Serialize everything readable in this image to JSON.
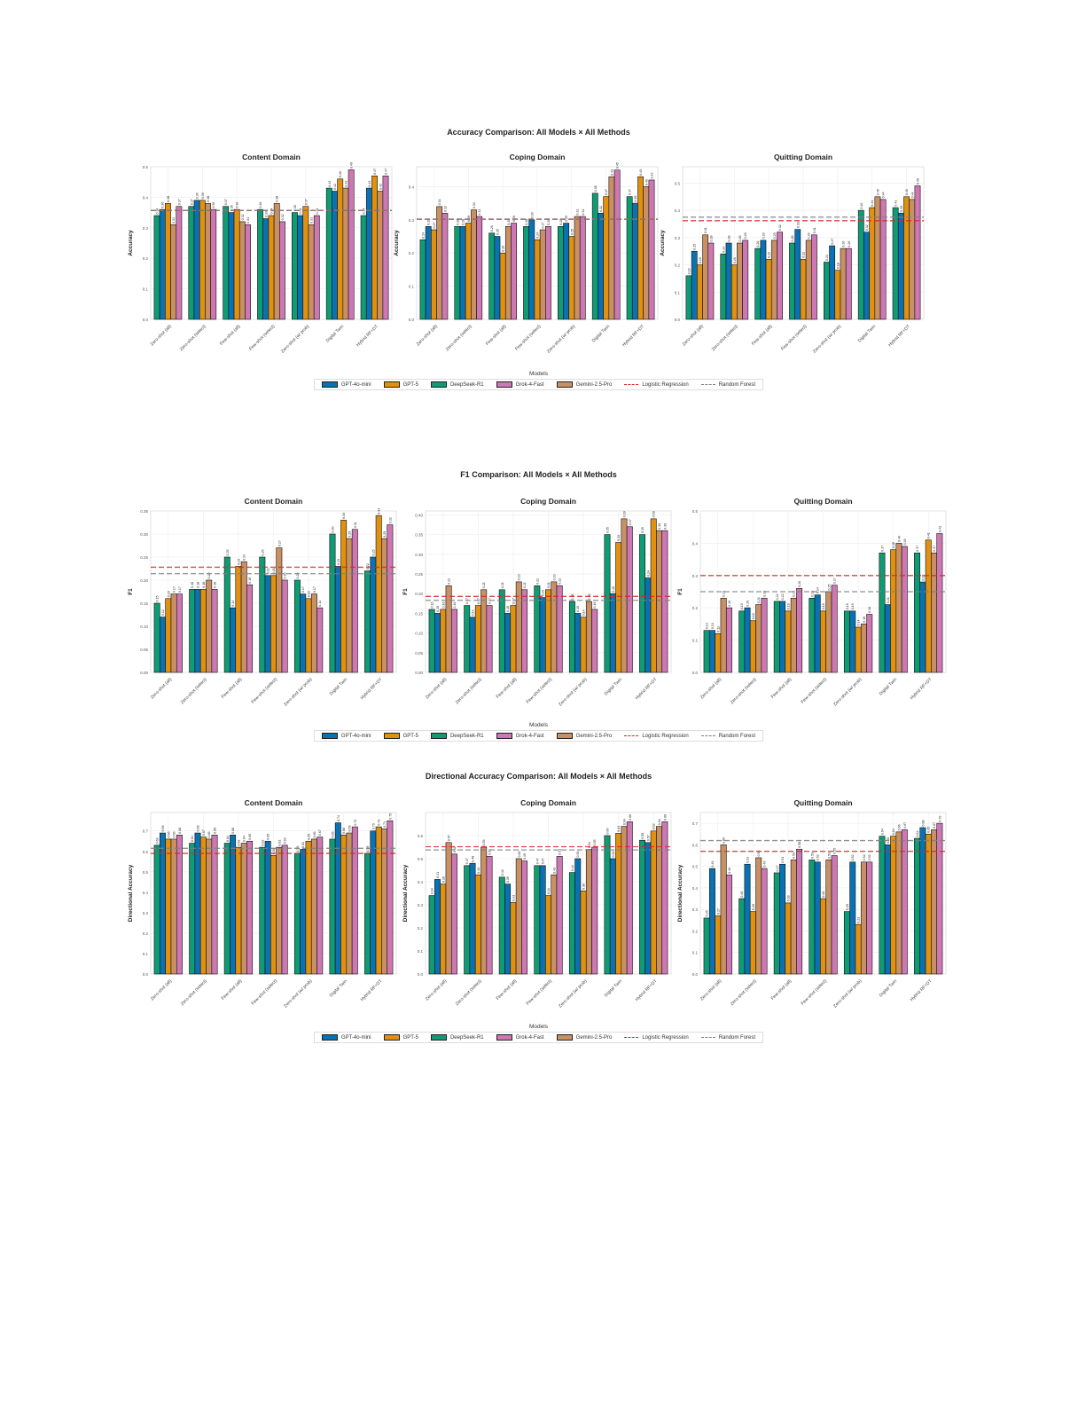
{
  "models": [
    {
      "name": "DeepSeek-R1",
      "color": "#0f9b73"
    },
    {
      "name": "GPT-4o-mini",
      "color": "#0a72b2"
    },
    {
      "name": "GPT-5",
      "color": "#e0910f"
    },
    {
      "name": "Gemini-2.5-Pro",
      "color": "#c99063"
    },
    {
      "name": "Grok-4-Fast",
      "color": "#cd78b4"
    }
  ],
  "legend": {
    "title": "Models",
    "items": [
      {
        "label": "GPT-4o-mini",
        "type": "bar",
        "color": "#0a72b2"
      },
      {
        "label": "GPT-5",
        "type": "bar",
        "color": "#e0910f"
      },
      {
        "label": "DeepSeek-R1",
        "type": "bar",
        "color": "#0f9b73"
      },
      {
        "label": "Grok-4-Fast",
        "type": "bar",
        "color": "#cd78b4"
      },
      {
        "label": "Gemini-2.5-Pro",
        "type": "bar",
        "color": "#c99063"
      },
      {
        "label": "Logistic Regression",
        "type": "dash",
        "color": "#d62728"
      },
      {
        "label": "Random Forest",
        "type": "dash",
        "color": "#7f7f7f"
      }
    ]
  },
  "figures": [
    {
      "title": "Accuracy Comparison: All Models × All Methods"
    },
    {
      "title": "F1 Comparison: All Models × All Methods"
    },
    {
      "title": "Directional Accuracy Comparison: All Models × All Methods"
    }
  ],
  "chart_data": [
    {
      "type": "bar",
      "figure": "Accuracy Comparison: All Models × All Methods",
      "title": "Content Domain",
      "xlabel": "",
      "ylabel": "Accuracy",
      "ylim": [
        0,
        0.5
      ],
      "yticks": [
        0.0,
        0.1,
        0.2,
        0.3,
        0.4,
        0.5
      ],
      "categories": [
        "Zero-shot (all)",
        "Zero-shot (select)",
        "Few-shot (all)",
        "Few-shot (select)",
        "Zero-shot (w/ prob)",
        "Digital Twin",
        "Hybrid RF+DT"
      ],
      "series": [
        {
          "name": "DeepSeek-R1",
          "values": [
            0.34,
            0.37,
            0.37,
            0.36,
            0.35,
            0.43,
            0.34
          ]
        },
        {
          "name": "GPT-4o-mini",
          "values": [
            0.36,
            0.39,
            0.35,
            0.33,
            0.34,
            0.42,
            0.43
          ]
        },
        {
          "name": "GPT-5",
          "values": [
            0.38,
            0.39,
            0.36,
            0.34,
            0.37,
            0.46,
            0.47
          ]
        },
        {
          "name": "Gemini-2.5-Pro",
          "values": [
            0.31,
            0.38,
            0.32,
            0.38,
            0.31,
            0.43,
            0.42
          ]
        },
        {
          "name": "Grok-4-Fast",
          "values": [
            0.37,
            0.36,
            0.31,
            0.32,
            0.34,
            0.49,
            0.47
          ]
        }
      ],
      "baselines": [
        {
          "name": "Logistic Regression",
          "value": 0.357
        },
        {
          "name": "Random Forest",
          "value": 0.357
        }
      ],
      "grid": true,
      "legend_position": "bottom"
    },
    {
      "type": "bar",
      "figure": "Accuracy Comparison: All Models × All Methods",
      "title": "Coping Domain",
      "xlabel": "",
      "ylabel": "Accuracy",
      "ylim": [
        0,
        0.46
      ],
      "yticks": [
        0.0,
        0.1,
        0.2,
        0.3,
        0.4
      ],
      "categories": [
        "Zero-shot (all)",
        "Zero-shot (select)",
        "Few-shot (all)",
        "Few-shot (select)",
        "Zero-shot (w/ prob)",
        "Digital Twin",
        "Hybrid RF+DT"
      ],
      "series": [
        {
          "name": "DeepSeek-R1",
          "values": [
            0.24,
            0.28,
            0.26,
            0.28,
            0.28,
            0.38,
            0.37
          ]
        },
        {
          "name": "GPT-4o-mini",
          "values": [
            0.28,
            0.28,
            0.25,
            0.3,
            0.29,
            0.32,
            0.35
          ]
        },
        {
          "name": "GPT-5",
          "values": [
            0.27,
            0.29,
            0.2,
            0.24,
            0.25,
            0.37,
            0.43
          ]
        },
        {
          "name": "Gemini-2.5-Pro",
          "values": [
            0.34,
            0.33,
            0.28,
            0.27,
            0.31,
            0.43,
            0.4
          ]
        },
        {
          "name": "Grok-4-Fast",
          "values": [
            0.32,
            0.31,
            0.29,
            0.28,
            0.31,
            0.45,
            0.42
          ]
        }
      ],
      "baselines": [
        {
          "name": "Logistic Regression",
          "value": 0.302
        },
        {
          "name": "Random Forest",
          "value": 0.302
        }
      ],
      "grid": true,
      "legend_position": "bottom"
    },
    {
      "type": "bar",
      "figure": "Accuracy Comparison: All Models × All Methods",
      "title": "Quitting Domain",
      "xlabel": "",
      "ylabel": "Accuracy",
      "ylim": [
        0,
        0.56
      ],
      "yticks": [
        0.0,
        0.1,
        0.2,
        0.3,
        0.4,
        0.5
      ],
      "categories": [
        "Zero-shot (all)",
        "Zero-shot (select)",
        "Few-shot (all)",
        "Few-shot (select)",
        "Zero-shot (w/ prob)",
        "Digital Twin",
        "Hybrid RF+DT"
      ],
      "series": [
        {
          "name": "DeepSeek-R1",
          "values": [
            0.16,
            0.24,
            0.26,
            0.28,
            0.21,
            0.4,
            0.41
          ]
        },
        {
          "name": "GPT-4o-mini",
          "values": [
            0.25,
            0.28,
            0.29,
            0.33,
            0.27,
            0.32,
            0.39
          ]
        },
        {
          "name": "GPT-5",
          "values": [
            0.2,
            0.2,
            0.22,
            0.22,
            0.18,
            0.41,
            0.45
          ]
        },
        {
          "name": "Gemini-2.5-Pro",
          "values": [
            0.31,
            0.28,
            0.29,
            0.29,
            0.26,
            0.45,
            0.44
          ]
        },
        {
          "name": "Grok-4-Fast",
          "values": [
            0.28,
            0.29,
            0.32,
            0.31,
            0.26,
            0.44,
            0.49
          ]
        }
      ],
      "baselines": [
        {
          "name": "Logistic Regression",
          "value": 0.362
        },
        {
          "name": "Random Forest",
          "value": 0.375
        }
      ],
      "grid": true,
      "legend_position": "bottom"
    },
    {
      "type": "bar",
      "figure": "F1 Comparison: All Models × All Methods",
      "title": "Content Domain",
      "xlabel": "",
      "ylabel": "F1",
      "ylim": [
        0,
        0.35
      ],
      "yticks": [
        0.0,
        0.05,
        0.1,
        0.15,
        0.2,
        0.25,
        0.3,
        0.35
      ],
      "categories": [
        "Zero-shot (all)",
        "Zero-shot (select)",
        "Few-shot (all)",
        "Few-shot (select)",
        "Zero-shot (w/ prob)",
        "Digital Twin",
        "Hybrid RF+DT"
      ],
      "series": [
        {
          "name": "DeepSeek-R1",
          "values": [
            0.15,
            0.18,
            0.25,
            0.25,
            0.2,
            0.3,
            0.22
          ]
        },
        {
          "name": "GPT-4o-mini",
          "values": [
            0.12,
            0.18,
            0.14,
            0.21,
            0.17,
            0.23,
            0.25
          ]
        },
        {
          "name": "GPT-5",
          "values": [
            0.16,
            0.18,
            0.23,
            0.21,
            0.16,
            0.33,
            0.34
          ]
        },
        {
          "name": "Gemini-2.5-Pro",
          "values": [
            0.17,
            0.2,
            0.24,
            0.27,
            0.17,
            0.29,
            0.29
          ]
        },
        {
          "name": "Grok-4-Fast",
          "values": [
            0.17,
            0.18,
            0.19,
            0.2,
            0.14,
            0.31,
            0.32
          ]
        }
      ],
      "baselines": [
        {
          "name": "Logistic Regression",
          "value": 0.228
        },
        {
          "name": "Random Forest",
          "value": 0.214
        }
      ],
      "grid": true,
      "legend_position": "bottom"
    },
    {
      "type": "bar",
      "figure": "F1 Comparison: All Models × All Methods",
      "title": "Coping Domain",
      "xlabel": "",
      "ylabel": "F1",
      "ylim": [
        0,
        0.41
      ],
      "yticks": [
        0.0,
        0.05,
        0.1,
        0.15,
        0.2,
        0.25,
        0.3,
        0.35,
        0.4
      ],
      "categories": [
        "Zero-shot (all)",
        "Zero-shot (select)",
        "Few-shot (all)",
        "Few-shot (select)",
        "Zero-shot (w/ prob)",
        "Digital Twin",
        "Hybrid RF+DT"
      ],
      "series": [
        {
          "name": "DeepSeek-R1",
          "values": [
            0.16,
            0.17,
            0.21,
            0.22,
            0.18,
            0.35,
            0.35
          ]
        },
        {
          "name": "GPT-4o-mini",
          "values": [
            0.15,
            0.14,
            0.15,
            0.19,
            0.15,
            0.2,
            0.24
          ]
        },
        {
          "name": "GPT-5",
          "values": [
            0.16,
            0.17,
            0.17,
            0.21,
            0.14,
            0.33,
            0.39
          ]
        },
        {
          "name": "Gemini-2.5-Pro",
          "values": [
            0.22,
            0.21,
            0.23,
            0.23,
            0.18,
            0.39,
            0.36
          ]
        },
        {
          "name": "Grok-4-Fast",
          "values": [
            0.16,
            0.17,
            0.21,
            0.22,
            0.16,
            0.37,
            0.36
          ]
        }
      ],
      "baselines": [
        {
          "name": "Logistic Regression",
          "value": 0.193
        },
        {
          "name": "Random Forest",
          "value": 0.183
        }
      ],
      "grid": true,
      "legend_position": "bottom"
    },
    {
      "type": "bar",
      "figure": "F1 Comparison: All Models × All Methods",
      "title": "Quitting Domain",
      "xlabel": "",
      "ylabel": "F1",
      "ylim": [
        0,
        0.5
      ],
      "yticks": [
        0.0,
        0.1,
        0.2,
        0.3,
        0.4,
        0.5
      ],
      "categories": [
        "Zero-shot (all)",
        "Zero-shot (select)",
        "Few-shot (all)",
        "Few-shot (select)",
        "Zero-shot (w/ prob)",
        "Digital Twin",
        "Hybrid RF+DT"
      ],
      "series": [
        {
          "name": "DeepSeek-R1",
          "values": [
            0.13,
            0.19,
            0.22,
            0.23,
            0.19,
            0.37,
            0.37
          ]
        },
        {
          "name": "GPT-4o-mini",
          "values": [
            0.13,
            0.2,
            0.22,
            0.24,
            0.19,
            0.21,
            0.28
          ]
        },
        {
          "name": "GPT-5",
          "values": [
            0.12,
            0.16,
            0.19,
            0.19,
            0.14,
            0.38,
            0.41
          ]
        },
        {
          "name": "Gemini-2.5-Pro",
          "values": [
            0.23,
            0.21,
            0.23,
            0.25,
            0.15,
            0.4,
            0.37
          ]
        },
        {
          "name": "Grok-4-Fast",
          "values": [
            0.2,
            0.23,
            0.26,
            0.27,
            0.18,
            0.39,
            0.43
          ]
        }
      ],
      "baselines": [
        {
          "name": "Logistic Regression",
          "value": 0.3
        },
        {
          "name": "Random Forest",
          "value": 0.25
        }
      ],
      "grid": true,
      "legend_position": "bottom"
    },
    {
      "type": "bar",
      "figure": "Directional Accuracy Comparison: All Models × All Methods",
      "title": "Content Domain",
      "xlabel": "",
      "ylabel": "Directional Accuracy",
      "ylim": [
        0,
        0.79
      ],
      "yticks": [
        0.0,
        0.1,
        0.2,
        0.3,
        0.4,
        0.5,
        0.6,
        0.7
      ],
      "categories": [
        "Zero-shot (all)",
        "Zero-shot (select)",
        "Few-shot (all)",
        "Few-shot (select)",
        "Zero-shot (w/ prob)",
        "Digital Twin",
        "Hybrid RF+DT"
      ],
      "series": [
        {
          "name": "DeepSeek-R1",
          "values": [
            0.63,
            0.64,
            0.64,
            0.62,
            0.59,
            0.66,
            0.59
          ]
        },
        {
          "name": "GPT-4o-mini",
          "values": [
            0.69,
            0.69,
            0.68,
            0.65,
            0.61,
            0.74,
            0.7
          ]
        },
        {
          "name": "GPT-5",
          "values": [
            0.66,
            0.67,
            0.62,
            0.58,
            0.65,
            0.68,
            0.72
          ]
        },
        {
          "name": "Gemini-2.5-Pro",
          "values": [
            0.66,
            0.66,
            0.64,
            0.62,
            0.66,
            0.69,
            0.71
          ]
        },
        {
          "name": "Grok-4-Fast",
          "values": [
            0.68,
            0.68,
            0.65,
            0.63,
            0.67,
            0.72,
            0.75
          ]
        }
      ],
      "baselines": [
        {
          "name": "Logistic Regression",
          "value": 0.59
        },
        {
          "name": "Random Forest",
          "value": 0.615
        }
      ],
      "grid": true,
      "legend_position": "bottom"
    },
    {
      "type": "bar",
      "figure": "Directional Accuracy Comparison: All Models × All Methods",
      "title": "Coping Domain",
      "xlabel": "",
      "ylabel": "Directional Accuracy",
      "ylim": [
        0,
        0.7
      ],
      "yticks": [
        0.0,
        0.1,
        0.2,
        0.3,
        0.4,
        0.5,
        0.6
      ],
      "categories": [
        "Zero-shot (all)",
        "Zero-shot (select)",
        "Few-shot (all)",
        "Few-shot (select)",
        "Zero-shot (w/ prob)",
        "Digital Twin",
        "Hybrid RF+DT"
      ],
      "series": [
        {
          "name": "DeepSeek-R1",
          "values": [
            0.34,
            0.47,
            0.42,
            0.47,
            0.44,
            0.6,
            0.58
          ]
        },
        {
          "name": "GPT-4o-mini",
          "values": [
            0.41,
            0.48,
            0.39,
            0.47,
            0.5,
            0.5,
            0.57
          ]
        },
        {
          "name": "GPT-5",
          "values": [
            0.39,
            0.43,
            0.31,
            0.34,
            0.36,
            0.61,
            0.62
          ]
        },
        {
          "name": "Gemini-2.5-Pro",
          "values": [
            0.57,
            0.55,
            0.5,
            0.43,
            0.54,
            0.64,
            0.64
          ]
        },
        {
          "name": "Grok-4-Fast",
          "values": [
            0.52,
            0.51,
            0.49,
            0.51,
            0.55,
            0.66,
            0.66
          ]
        }
      ],
      "baselines": [
        {
          "name": "Logistic Regression",
          "value": 0.552
        },
        {
          "name": "Random Forest",
          "value": 0.538
        }
      ],
      "grid": true,
      "legend_position": "bottom"
    },
    {
      "type": "bar",
      "figure": "Directional Accuracy Comparison: All Models × All Methods",
      "title": "Quitting Domain",
      "xlabel": "",
      "ylabel": "Directional Accuracy",
      "ylim": [
        0,
        0.75
      ],
      "yticks": [
        0.0,
        0.1,
        0.2,
        0.3,
        0.4,
        0.5,
        0.6,
        0.7
      ],
      "categories": [
        "Zero-shot (all)",
        "Zero-shot (select)",
        "Few-shot (all)",
        "Few-shot (select)",
        "Zero-shot (w/ prob)",
        "Digital Twin",
        "Hybrid RF+DT"
      ],
      "series": [
        {
          "name": "DeepSeek-R1",
          "values": [
            0.26,
            0.35,
            0.47,
            0.53,
            0.29,
            0.64,
            0.63
          ]
        },
        {
          "name": "GPT-4o-mini",
          "values": [
            0.49,
            0.51,
            0.51,
            0.52,
            0.52,
            0.6,
            0.68
          ]
        },
        {
          "name": "GPT-5",
          "values": [
            0.27,
            0.29,
            0.33,
            0.35,
            0.23,
            0.64,
            0.65
          ]
        },
        {
          "name": "Gemini-2.5-Pro",
          "values": [
            0.6,
            0.54,
            0.53,
            0.53,
            0.52,
            0.66,
            0.67
          ]
        },
        {
          "name": "Grok-4-Fast",
          "values": [
            0.46,
            0.49,
            0.58,
            0.55,
            0.52,
            0.67,
            0.7
          ]
        }
      ],
      "baselines": [
        {
          "name": "Logistic Regression",
          "value": 0.57
        },
        {
          "name": "Random Forest",
          "value": 0.62
        }
      ],
      "grid": true,
      "legend_position": "bottom"
    }
  ]
}
